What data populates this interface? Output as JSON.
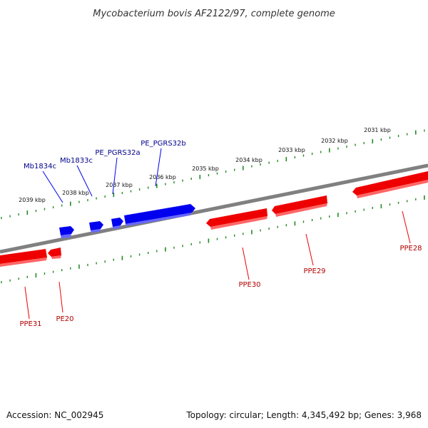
{
  "title": "Mycobacterium bovis AF2122/97, complete genome",
  "footer": {
    "accession": "Accession: NC_002945",
    "summary": "Topology: circular; Length: 4,345,492 bp; Genes: 3,968"
  },
  "colors": {
    "backbone": "#808080",
    "ticks": "#228b22",
    "reverse_strand": "#0000ee",
    "forward_strand": "#ee0000",
    "reverse_label": "#00008b",
    "forward_label": "#b00000"
  },
  "scale_labels": [
    "2031 kbp",
    "2032 kbp",
    "2033 kbp",
    "2034 kbp",
    "2035 kbp",
    "2036 kbp",
    "2037 kbp",
    "2038 kbp",
    "2039 kbp"
  ],
  "genes": [
    {
      "name": "Mb1834c",
      "strand": "reverse",
      "labeled": true
    },
    {
      "name": "Mb1833c",
      "strand": "reverse",
      "labeled": true
    },
    {
      "name": "PE_PGRS32a",
      "strand": "reverse",
      "labeled": true
    },
    {
      "name": "PE_PGRS32b",
      "strand": "reverse",
      "labeled": true
    },
    {
      "name": "PPE31",
      "strand": "forward",
      "labeled": true
    },
    {
      "name": "PE20",
      "strand": "forward",
      "labeled": true
    },
    {
      "name": "PPE30",
      "strand": "forward",
      "labeled": true
    },
    {
      "name": "PPE29",
      "strand": "forward",
      "labeled": true
    },
    {
      "name": "PPE28",
      "strand": "forward",
      "labeled": true
    }
  ]
}
